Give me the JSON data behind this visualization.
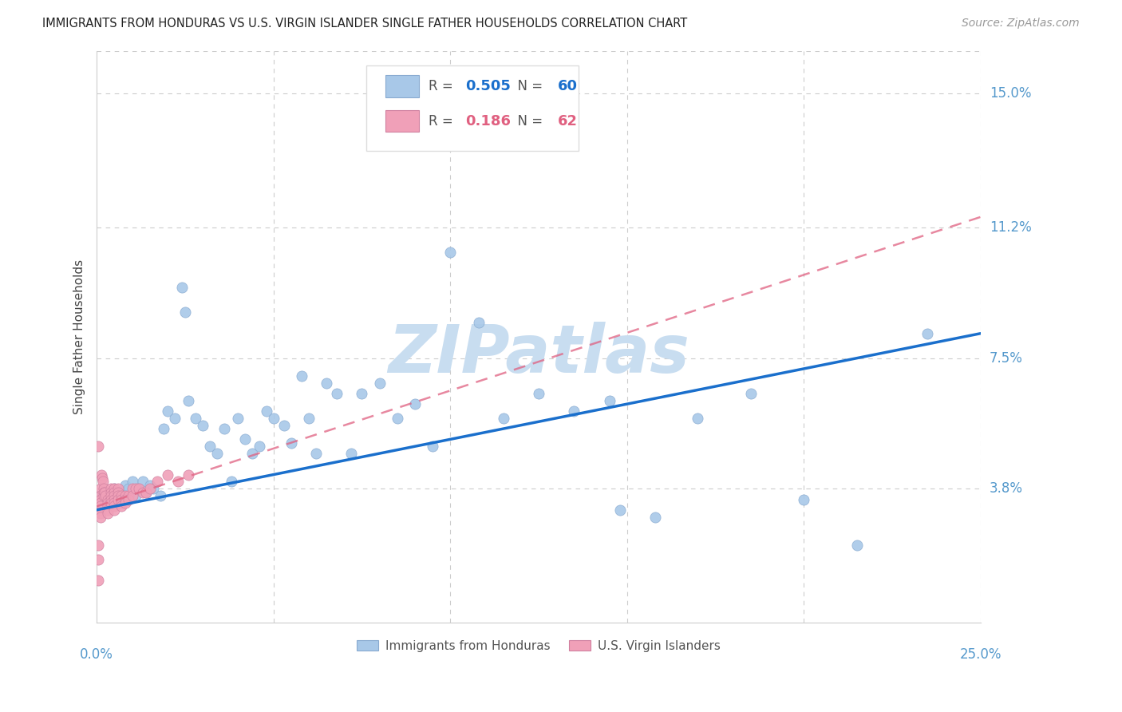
{
  "title": "IMMIGRANTS FROM HONDURAS VS U.S. VIRGIN ISLANDER SINGLE FATHER HOUSEHOLDS CORRELATION CHART",
  "source": "Source: ZipAtlas.com",
  "ylabel_ticks": [
    "3.8%",
    "7.5%",
    "11.2%",
    "15.0%"
  ],
  "ylabel_vals": [
    0.038,
    0.075,
    0.112,
    0.15
  ],
  "xlim": [
    0.0,
    0.25
  ],
  "ylim": [
    0.0,
    0.162
  ],
  "xgrid_vals": [
    0.05,
    0.1,
    0.15,
    0.2
  ],
  "ygrid_vals": [
    0.038,
    0.075,
    0.112,
    0.15
  ],
  "ylabel": "Single Father Households",
  "blue_color": "#a8c8e8",
  "pink_color": "#f0a0b8",
  "trend_blue_color": "#1a6fcc",
  "trend_pink_color": "#e06080",
  "title_color": "#222222",
  "source_color": "#999999",
  "axis_label_color": "#5599cc",
  "grid_color": "#cccccc",
  "watermark_color": "#c8ddf0",
  "legend_blue_r": "0.505",
  "legend_blue_n": "60",
  "legend_pink_r": "0.186",
  "legend_pink_n": "62",
  "blue_trend_x0": 0.0,
  "blue_trend_y0": 0.032,
  "blue_trend_x1": 0.25,
  "blue_trend_y1": 0.082,
  "pink_trend_x0": 0.0,
  "pink_trend_y0": 0.033,
  "pink_trend_x1": 0.25,
  "pink_trend_y1": 0.115,
  "blue_x": [
    0.001,
    0.003,
    0.004,
    0.005,
    0.006,
    0.007,
    0.008,
    0.009,
    0.01,
    0.011,
    0.012,
    0.013,
    0.014,
    0.015,
    0.016,
    0.018,
    0.019,
    0.02,
    0.022,
    0.024,
    0.026,
    0.028,
    0.03,
    0.032,
    0.034,
    0.036,
    0.038,
    0.04,
    0.042,
    0.044,
    0.046,
    0.048,
    0.05,
    0.053,
    0.055,
    0.058,
    0.062,
    0.065,
    0.068,
    0.072,
    0.075,
    0.08,
    0.085,
    0.09,
    0.095,
    0.1,
    0.108,
    0.115,
    0.125,
    0.135,
    0.148,
    0.158,
    0.17,
    0.185,
    0.2,
    0.215,
    0.235,
    0.025,
    0.06,
    0.145
  ],
  "blue_y": [
    0.036,
    0.037,
    0.035,
    0.038,
    0.036,
    0.037,
    0.039,
    0.038,
    0.04,
    0.036,
    0.038,
    0.04,
    0.037,
    0.039,
    0.038,
    0.036,
    0.055,
    0.06,
    0.058,
    0.095,
    0.063,
    0.058,
    0.056,
    0.05,
    0.048,
    0.055,
    0.04,
    0.058,
    0.052,
    0.048,
    0.05,
    0.06,
    0.058,
    0.056,
    0.051,
    0.07,
    0.048,
    0.068,
    0.065,
    0.048,
    0.065,
    0.068,
    0.058,
    0.062,
    0.05,
    0.105,
    0.085,
    0.058,
    0.065,
    0.06,
    0.032,
    0.03,
    0.058,
    0.065,
    0.035,
    0.022,
    0.082,
    0.088,
    0.058,
    0.063
  ],
  "pink_x": [
    0.0005,
    0.0008,
    0.001,
    0.001,
    0.001,
    0.001,
    0.001,
    0.001,
    0.001,
    0.001,
    0.0012,
    0.0015,
    0.0018,
    0.002,
    0.002,
    0.002,
    0.0022,
    0.0025,
    0.003,
    0.003,
    0.003,
    0.003,
    0.003,
    0.004,
    0.004,
    0.004,
    0.004,
    0.004,
    0.005,
    0.005,
    0.005,
    0.005,
    0.005,
    0.005,
    0.005,
    0.006,
    0.006,
    0.006,
    0.006,
    0.007,
    0.007,
    0.007,
    0.007,
    0.008,
    0.008,
    0.008,
    0.009,
    0.009,
    0.01,
    0.01,
    0.011,
    0.012,
    0.013,
    0.014,
    0.015,
    0.017,
    0.02,
    0.023,
    0.026,
    0.0003,
    0.0003,
    0.0005
  ],
  "pink_y": [
    0.05,
    0.033,
    0.038,
    0.036,
    0.035,
    0.034,
    0.033,
    0.032,
    0.031,
    0.03,
    0.042,
    0.041,
    0.04,
    0.038,
    0.037,
    0.036,
    0.037,
    0.036,
    0.035,
    0.034,
    0.033,
    0.032,
    0.031,
    0.038,
    0.037,
    0.036,
    0.035,
    0.034,
    0.038,
    0.037,
    0.036,
    0.035,
    0.034,
    0.033,
    0.032,
    0.038,
    0.037,
    0.036,
    0.035,
    0.036,
    0.035,
    0.034,
    0.033,
    0.036,
    0.035,
    0.034,
    0.036,
    0.035,
    0.038,
    0.036,
    0.038,
    0.038,
    0.037,
    0.037,
    0.038,
    0.04,
    0.042,
    0.04,
    0.042,
    0.022,
    0.018,
    0.012
  ]
}
